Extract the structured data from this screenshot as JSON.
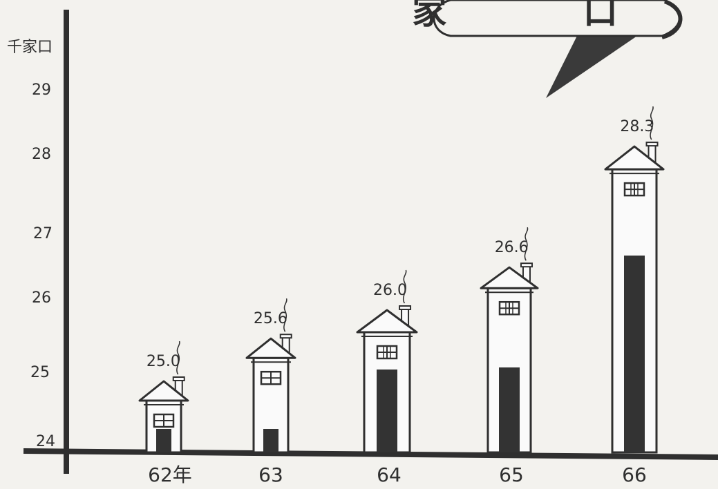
{
  "chart_data": {
    "type": "bar",
    "title": "家 口",
    "ylabel": "千家口",
    "ylim": [
      24,
      29
    ],
    "yticks": [
      "24",
      "25",
      "26",
      "27",
      "28",
      "29"
    ],
    "categories": [
      "62年",
      "63",
      "64",
      "65",
      "66"
    ],
    "values": [
      25.0,
      25.6,
      26.0,
      26.6,
      28.3
    ],
    "value_labels": [
      "25.0",
      "25.6",
      "26.0",
      "26.6",
      "28.3"
    ],
    "grid": false,
    "legend": "none",
    "mark_style": "house with chimney and smoke",
    "colors": {
      "ink": "#2f2f2f",
      "paper": "#f3f2ee",
      "house_fill": "#fafafa"
    }
  }
}
